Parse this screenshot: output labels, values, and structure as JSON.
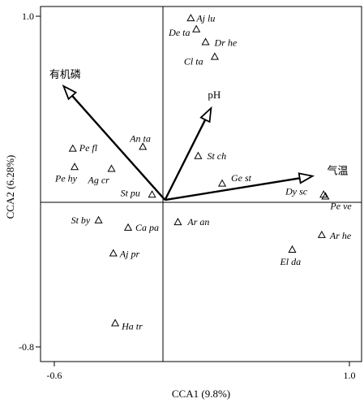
{
  "chart_data": {
    "type": "scatter",
    "title": "",
    "xlabel": "CCA1 (9.8%)",
    "ylabel": "CCA2 (6.28%)",
    "xlim": [
      -0.6,
      1.0
    ],
    "ylim": [
      -0.8,
      1.0
    ],
    "xticks": [
      "-0.6",
      "1.0"
    ],
    "yticks": [
      "1.0",
      "-0.8"
    ],
    "grid": false,
    "series": [
      {
        "marker": "open-triangle",
        "points": [
          {
            "label": "Aj lu",
            "x": 0.14,
            "y": 0.99
          },
          {
            "label": "De ta",
            "x": 0.17,
            "y": 0.93
          },
          {
            "label": "Dr he",
            "x": 0.22,
            "y": 0.86
          },
          {
            "label": "Cl ta",
            "x": 0.27,
            "y": 0.78
          },
          {
            "label": "An ta",
            "x": -0.12,
            "y": 0.29
          },
          {
            "label": "Pe fl",
            "x": -0.5,
            "y": 0.28
          },
          {
            "label": "St ch",
            "x": 0.18,
            "y": 0.24
          },
          {
            "label": "Pe hy",
            "x": -0.49,
            "y": 0.18
          },
          {
            "label": "Ag cr",
            "x": -0.29,
            "y": 0.17
          },
          {
            "label": "Ge st",
            "x": 0.31,
            "y": 0.09
          },
          {
            "label": "St pu",
            "x": -0.07,
            "y": 0.03
          },
          {
            "label": "Dy sc",
            "x": 0.86,
            "y": 0.03
          },
          {
            "label": "Pe ve",
            "x": 0.87,
            "y": 0.02
          },
          {
            "label": "St by",
            "x": -0.36,
            "y": -0.11
          },
          {
            "label": "Ar an",
            "x": 0.07,
            "y": -0.12
          },
          {
            "label": "Ca pa",
            "x": -0.2,
            "y": -0.15
          },
          {
            "label": "Ar he",
            "x": 0.85,
            "y": -0.19
          },
          {
            "label": "Aj pr",
            "x": -0.28,
            "y": -0.29
          },
          {
            "label": "El da",
            "x": 0.69,
            "y": -0.27
          },
          {
            "label": "Ha tr",
            "x": -0.27,
            "y": -0.67
          }
        ]
      }
    ],
    "arrows": [
      {
        "label": "有机磷",
        "x": -0.55,
        "y": 0.62
      },
      {
        "label": "pH",
        "x": 0.25,
        "y": 0.5
      },
      {
        "label": "气温",
        "x": 0.8,
        "y": 0.13
      }
    ]
  }
}
